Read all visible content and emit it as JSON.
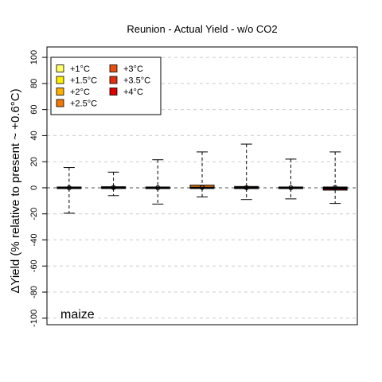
{
  "chart_data": {
    "type": "boxplot",
    "title": "Reunion - Actual Yield - w/o CO2",
    "ylabel": "ΔYield (% relative to present ~ +0.6°C)",
    "ylim": [
      -105,
      108
    ],
    "yticks": [
      100,
      80,
      60,
      40,
      20,
      0,
      -20,
      -40,
      -60,
      -80,
      -100
    ],
    "grid": "horizontal dashed",
    "legend_position": "top-left",
    "annotation": "maize",
    "series": [
      {
        "name": "+1°C",
        "color": "#ffff66",
        "whisker_low": -19.5,
        "q1": -0.6,
        "median": 0.0,
        "q3": 0.6,
        "whisker_high": 15.5,
        "mean": 0.0
      },
      {
        "name": "+1.5°C",
        "color": "#ffee00",
        "whisker_low": -6.0,
        "q1": -0.5,
        "median": 0.0,
        "q3": 0.8,
        "whisker_high": 12.0,
        "mean": 0.2
      },
      {
        "name": "+2°C",
        "color": "#ffb000",
        "whisker_low": -12.5,
        "q1": -0.6,
        "median": 0.0,
        "q3": 0.6,
        "whisker_high": 21.5,
        "mean": 0.0
      },
      {
        "name": "+2.5°C",
        "color": "#f07800",
        "whisker_low": -7.0,
        "q1": -0.5,
        "median": 0.0,
        "q3": 2.0,
        "whisker_high": 27.5,
        "mean": 0.3
      },
      {
        "name": "+3°C",
        "color": "#e85010",
        "whisker_low": -9.0,
        "q1": -0.6,
        "median": 0.0,
        "q3": 1.0,
        "whisker_high": 33.5,
        "mean": 0.1
      },
      {
        "name": "+3.5°C",
        "color": "#e03010",
        "whisker_low": -8.5,
        "q1": -0.6,
        "median": 0.0,
        "q3": 0.6,
        "whisker_high": 22.0,
        "mean": 0.0
      },
      {
        "name": "+4°C",
        "color": "#e00000",
        "whisker_low": -12.0,
        "q1": -1.8,
        "median": -0.5,
        "q3": 0.6,
        "whisker_high": 27.5,
        "mean": 0.2
      }
    ]
  }
}
